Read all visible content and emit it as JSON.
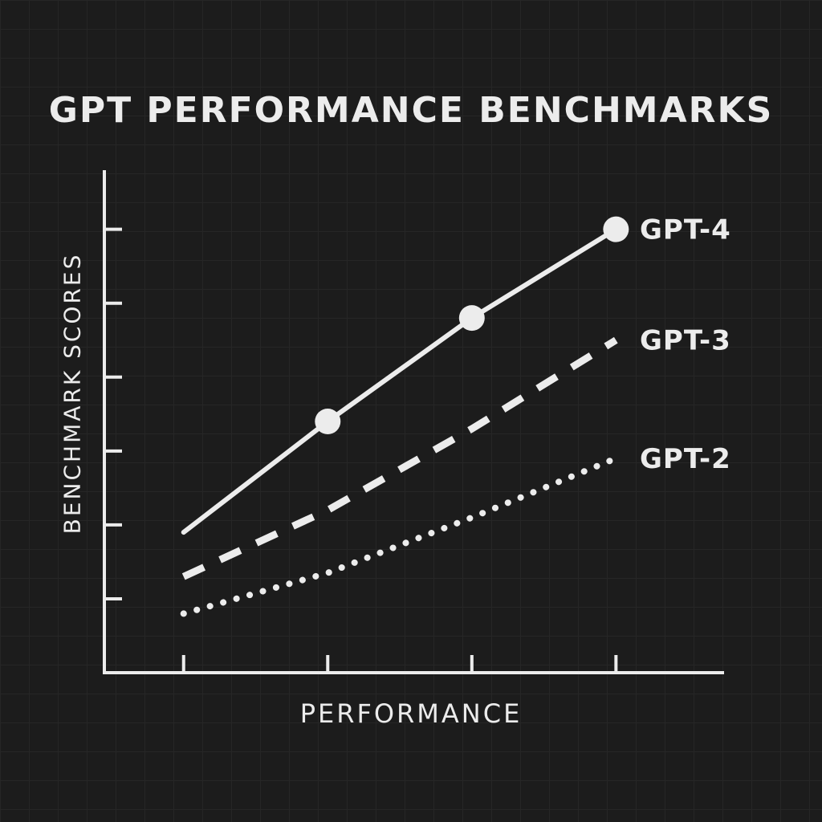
{
  "chart_data": {
    "type": "line",
    "title": "GPT PERFORMANCE BENCHMARKS",
    "xlabel": "PERFORMANCE",
    "ylabel": "BENCHMARK SCORES",
    "x": [
      1,
      2,
      3,
      4
    ],
    "xlim": [
      0.45,
      4.75
    ],
    "ylim": [
      0,
      6.8
    ],
    "grid": true,
    "legend": "inline-right",
    "series": [
      {
        "name": "GPT-4",
        "style": "solid",
        "markers": [
          false,
          true,
          true,
          true
        ],
        "values": [
          1.9,
          3.4,
          4.8,
          6.0
        ]
      },
      {
        "name": "GPT-3",
        "style": "dashed",
        "markers": [
          false,
          false,
          false,
          false
        ],
        "values": [
          1.3,
          2.2,
          3.3,
          4.5
        ]
      },
      {
        "name": "GPT-2",
        "style": "dotted",
        "markers": [
          false,
          false,
          false,
          false
        ],
        "values": [
          0.8,
          1.35,
          2.1,
          2.9
        ]
      }
    ],
    "colors": {
      "background": "#1c1c1c",
      "line": "#ececec",
      "grid": "#262626"
    }
  }
}
